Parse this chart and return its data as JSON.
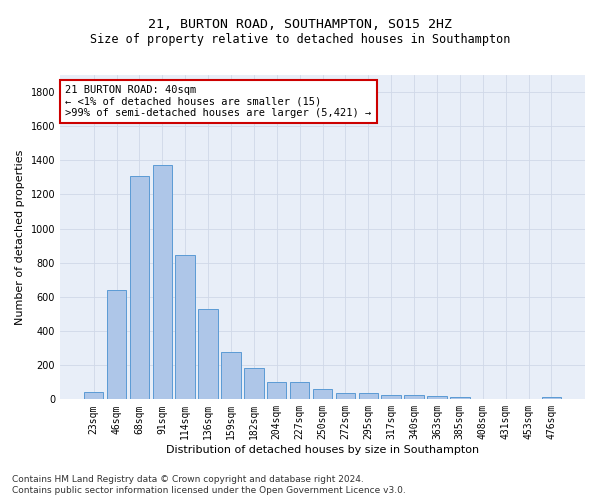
{
  "title_line1": "21, BURTON ROAD, SOUTHAMPTON, SO15 2HZ",
  "title_line2": "Size of property relative to detached houses in Southampton",
  "xlabel": "Distribution of detached houses by size in Southampton",
  "ylabel": "Number of detached properties",
  "categories": [
    "23sqm",
    "46sqm",
    "68sqm",
    "91sqm",
    "114sqm",
    "136sqm",
    "159sqm",
    "182sqm",
    "204sqm",
    "227sqm",
    "250sqm",
    "272sqm",
    "295sqm",
    "317sqm",
    "340sqm",
    "363sqm",
    "385sqm",
    "408sqm",
    "431sqm",
    "453sqm",
    "476sqm"
  ],
  "values": [
    45,
    640,
    1310,
    1375,
    848,
    530,
    275,
    185,
    100,
    100,
    60,
    38,
    38,
    28,
    28,
    20,
    15,
    0,
    0,
    0,
    15
  ],
  "bar_color": "#aec6e8",
  "bar_edge_color": "#5b9bd5",
  "annotation_line1": "21 BURTON ROAD: 40sqm",
  "annotation_line2": "← <1% of detached houses are smaller (15)",
  "annotation_line3": ">99% of semi-detached houses are larger (5,421) →",
  "annotation_box_color": "#ffffff",
  "annotation_box_edge_color": "#cc0000",
  "ylim": [
    0,
    1900
  ],
  "yticks": [
    0,
    200,
    400,
    600,
    800,
    1000,
    1200,
    1400,
    1600,
    1800
  ],
  "grid_color": "#d0d8e8",
  "background_color": "#e8eef8",
  "footer_line1": "Contains HM Land Registry data © Crown copyright and database right 2024.",
  "footer_line2": "Contains public sector information licensed under the Open Government Licence v3.0.",
  "title_fontsize": 9.5,
  "subtitle_fontsize": 8.5,
  "axis_label_fontsize": 8,
  "tick_fontsize": 7,
  "annotation_fontsize": 7.5,
  "footer_fontsize": 6.5
}
